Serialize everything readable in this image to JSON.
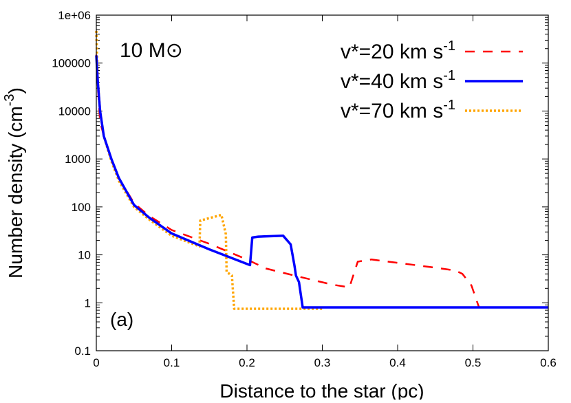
{
  "chart_data": {
    "type": "line",
    "title": "",
    "annotations": [
      "10 M⊙",
      "(a)"
    ],
    "xlabel": "Distance to the star (pc)",
    "ylabel": "Number density  (cm^-3)",
    "ylabel_main": "Number density  (cm",
    "ylabel_sup": "-3",
    "ylabel_end": ")",
    "xlim": [
      0,
      0.6
    ],
    "ylim": [
      0.1,
      1000000
    ],
    "yscale": "log",
    "grid": false,
    "legend_position": "top-right",
    "xticks": [
      "0",
      "0.1",
      "0.2",
      "0.3",
      "0.4",
      "0.5",
      "0.6"
    ],
    "yticks": [
      "0.1",
      "1",
      "10",
      "100",
      "1000",
      "10000",
      "100000",
      "1e+06"
    ],
    "series": [
      {
        "name": "v*=20 km s^-1",
        "label_main": "v*=20 km s",
        "label_sup": "-1",
        "color": "#ff0000",
        "style": "dashed",
        "x": [
          0,
          0.002,
          0.005,
          0.01,
          0.02,
          0.03,
          0.05,
          0.07,
          0.1,
          0.15,
          0.2,
          0.225,
          0.26,
          0.313,
          0.336,
          0.347,
          0.365,
          0.4,
          0.45,
          0.477,
          0.486,
          0.498,
          0.508,
          0.6
        ],
        "y": [
          150000,
          30000,
          6000,
          3000,
          1000,
          400,
          120,
          65,
          33,
          17,
          8,
          5.2,
          3.8,
          2.4,
          2.1,
          7.2,
          8,
          6.8,
          5.4,
          4.7,
          4,
          2.3,
          0.8,
          0.8
        ]
      },
      {
        "name": "v*=40 km s^-1",
        "label_main": "v*=40 km s",
        "label_sup": "-1",
        "color": "#0000ff",
        "style": "solid",
        "x": [
          0,
          0.002,
          0.005,
          0.01,
          0.02,
          0.03,
          0.05,
          0.07,
          0.1,
          0.15,
          0.204,
          0.207,
          0.215,
          0.248,
          0.258,
          0.263,
          0.265,
          0.269,
          0.274,
          0.6
        ],
        "y": [
          145000,
          40000,
          10000,
          3000,
          1000,
          400,
          110,
          60,
          28,
          13,
          6.1,
          23,
          24,
          25,
          16.5,
          6,
          3.7,
          2.7,
          0.8,
          0.8
        ]
      },
      {
        "name": "v*=70 km s^-1",
        "label_main": "v*=70 km s",
        "label_sup": "-1",
        "color": "#ffa500",
        "style": "dotted",
        "x": [
          0,
          0.002,
          0.005,
          0.01,
          0.02,
          0.03,
          0.05,
          0.07,
          0.1,
          0.137,
          0.138,
          0.166,
          0.172,
          0.173,
          0.18,
          0.183,
          0.3
        ],
        "y": [
          470000,
          40000,
          10000,
          3000,
          900,
          350,
          100,
          55,
          25,
          15,
          52,
          68,
          27,
          4.4,
          3.7,
          0.75,
          0.75
        ]
      }
    ]
  }
}
